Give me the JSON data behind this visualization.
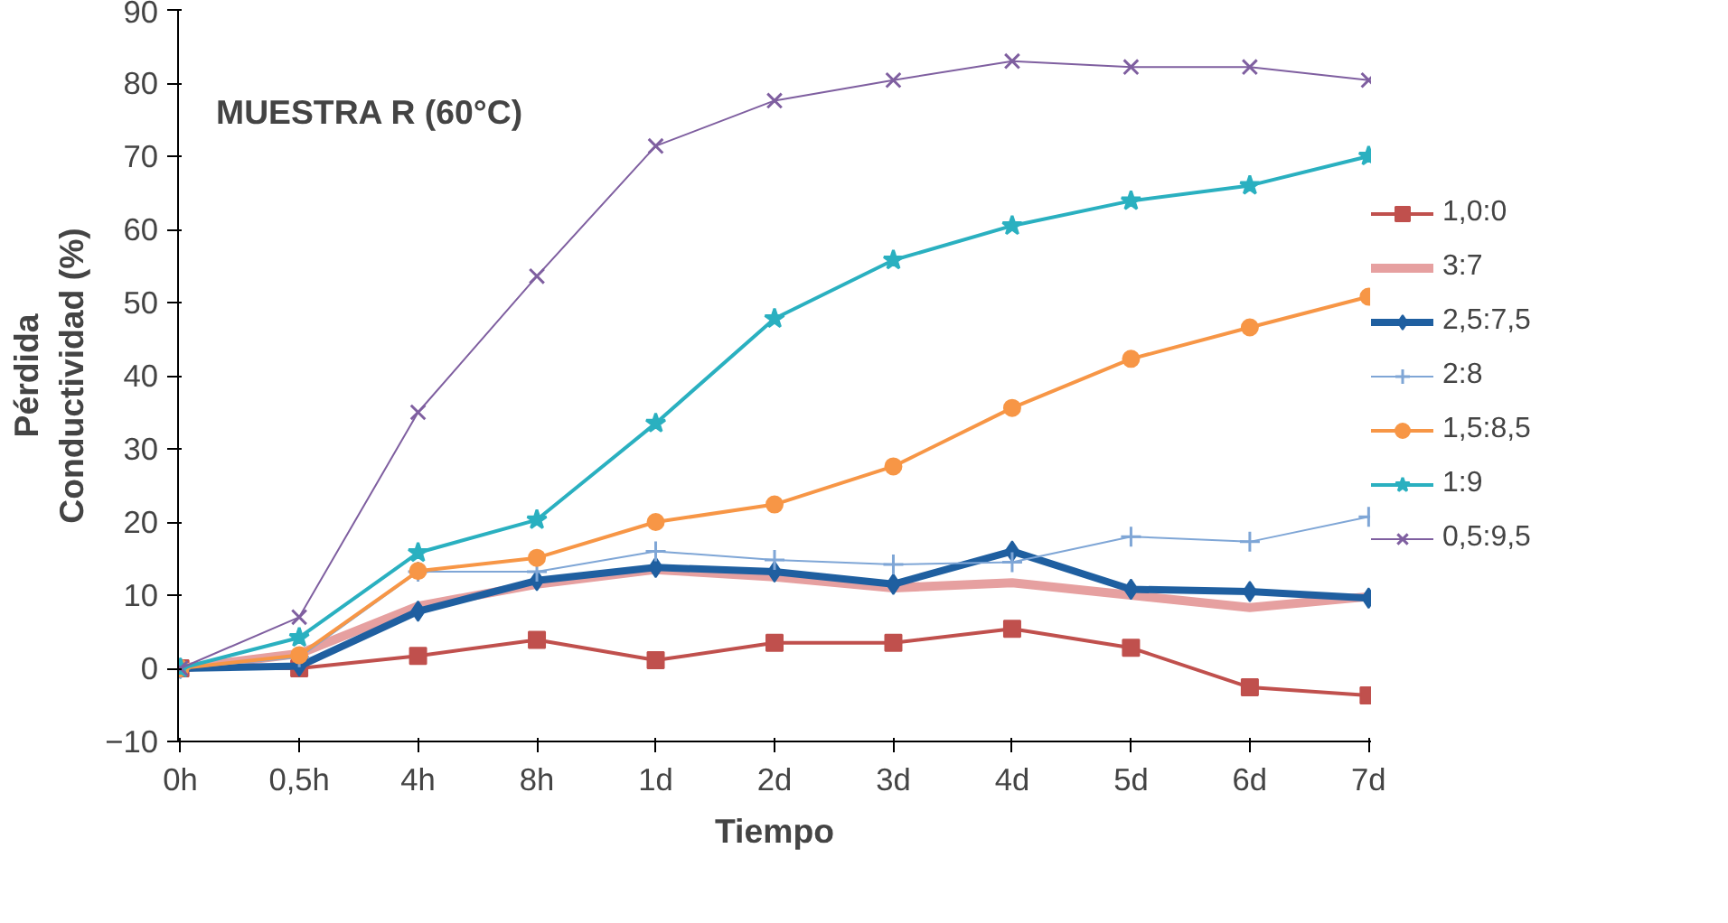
{
  "chart_data": {
    "type": "line",
    "title": "MUESTRA R (60°C)",
    "xlabel": "Tiempo",
    "ylabel": "Pérdida\nConductividad (%)",
    "categories": [
      "0h",
      "0,5h",
      "4h",
      "8h",
      "1d",
      "2d",
      "3d",
      "4d",
      "5d",
      "6d",
      "7d"
    ],
    "ylim": [
      -10,
      90
    ],
    "yticks": [
      -10,
      0,
      10,
      20,
      30,
      40,
      50,
      60,
      70,
      80,
      90
    ],
    "grid": false,
    "legend": "right",
    "series": [
      {
        "name": "1,0:0",
        "color": "#c0504d",
        "marker": "square",
        "values": [
          0,
          0,
          1.7,
          3.9,
          1.1,
          3.5,
          3.5,
          5.4,
          2.8,
          -2.6,
          -3.7
        ]
      },
      {
        "name": "3:7",
        "color": "#e6a0a0",
        "marker": "none",
        "values": [
          0,
          2,
          8.5,
          11.5,
          13.5,
          12.5,
          11,
          11.7,
          10,
          8.3,
          9.8
        ]
      },
      {
        "name": "2,5:7,5",
        "color": "#1f5fa0",
        "marker": "diamond",
        "values": [
          0,
          0.3,
          7.8,
          12,
          13.8,
          13.2,
          11.5,
          16,
          10.8,
          10.5,
          9.6
        ]
      },
      {
        "name": "2:8",
        "color": "#7fa6d6",
        "marker": "cross",
        "values": [
          0,
          1.5,
          13.2,
          13.2,
          16,
          14.8,
          14.2,
          14.5,
          18,
          17.3,
          20.7
        ]
      },
      {
        "name": "1,5:8,5",
        "color": "#f79646",
        "marker": "circle",
        "values": [
          0,
          1.8,
          13.3,
          15.1,
          20,
          22.4,
          27.6,
          35.6,
          42.3,
          46.6,
          50.8
        ]
      },
      {
        "name": "1:9",
        "color": "#2ab0c0",
        "marker": "star",
        "values": [
          0,
          4.2,
          15.8,
          20.3,
          33.5,
          47.8,
          55.8,
          60.5,
          63.9,
          66,
          70
        ]
      },
      {
        "name": "0,5:9,5",
        "color": "#7f5fa0",
        "marker": "x",
        "values": [
          0,
          7,
          35,
          53.6,
          71.4,
          77.6,
          80.4,
          83,
          82.2,
          82.2,
          80.4
        ]
      }
    ]
  }
}
